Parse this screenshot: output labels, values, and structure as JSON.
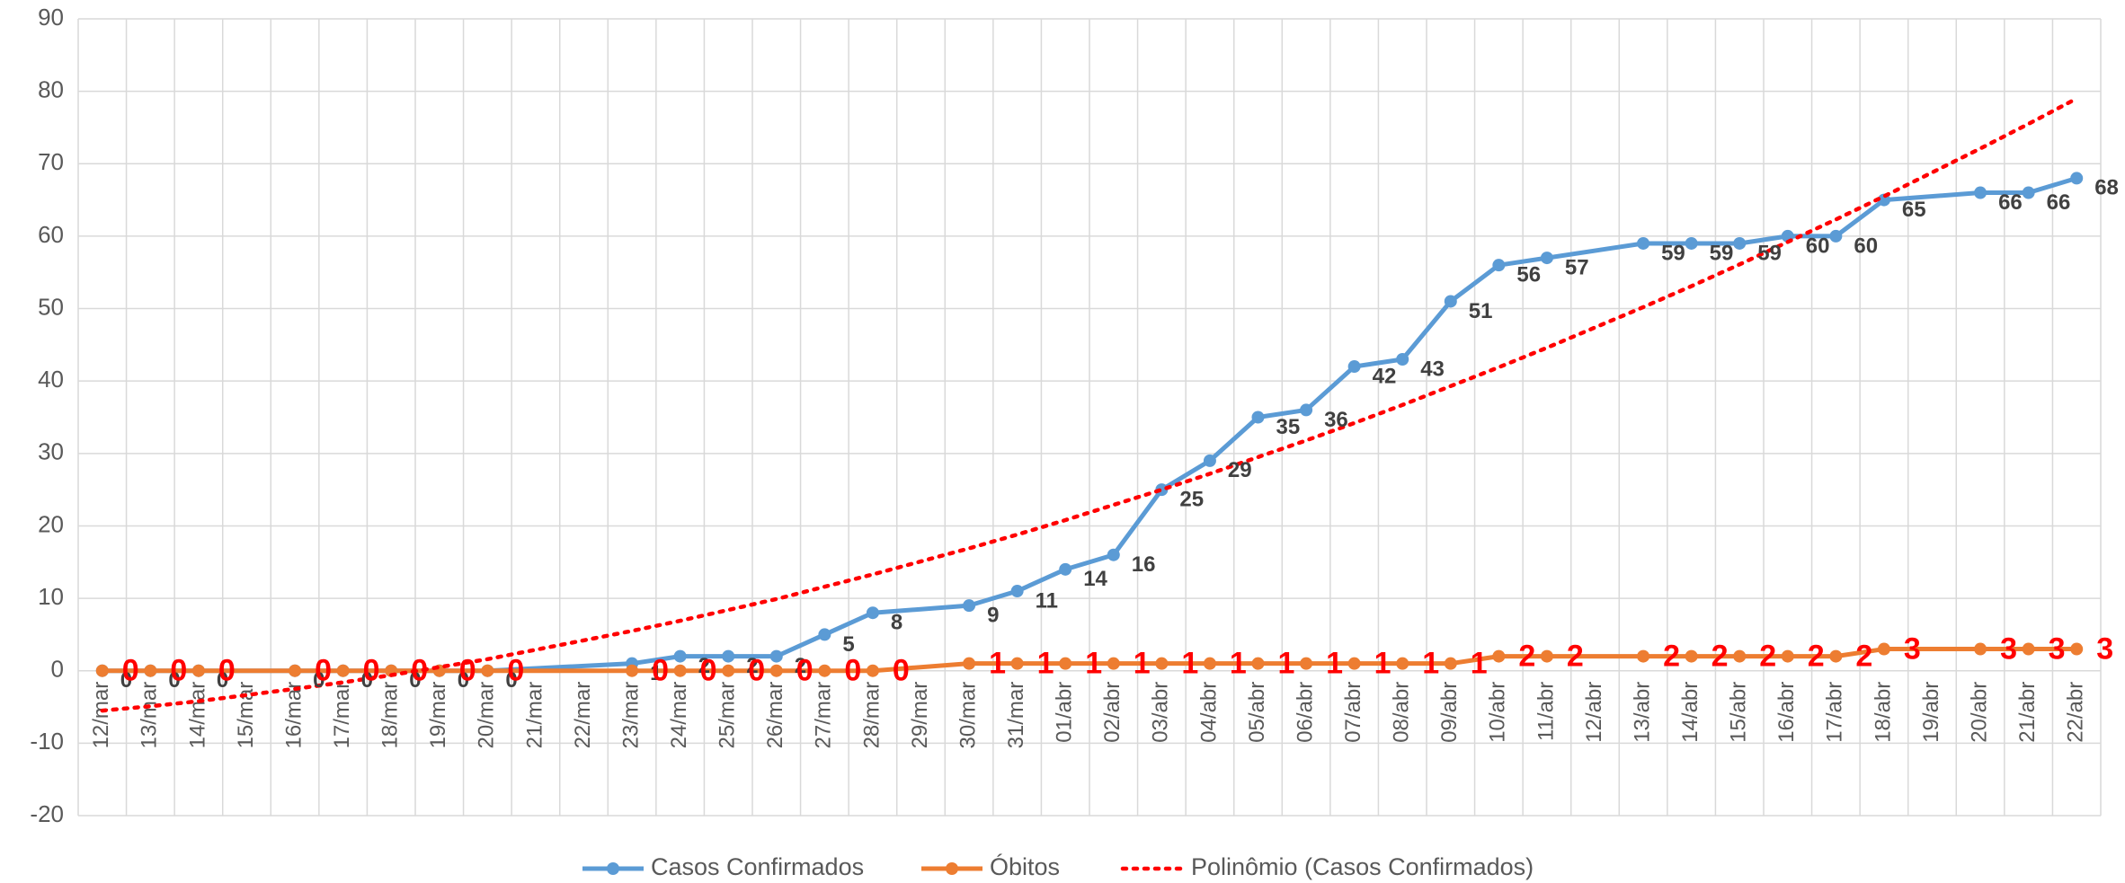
{
  "chart_data": {
    "type": "line",
    "categories": [
      "12/mar",
      "13/mar",
      "14/mar",
      "15/mar",
      "16/mar",
      "17/mar",
      "18/mar",
      "19/mar",
      "20/mar",
      "21/mar",
      "22/mar",
      "23/mar",
      "24/mar",
      "25/mar",
      "26/mar",
      "27/mar",
      "28/mar",
      "29/mar",
      "30/mar",
      "31/mar",
      "01/abr",
      "02/abr",
      "03/abr",
      "04/abr",
      "05/abr",
      "06/abr",
      "07/abr",
      "08/abr",
      "09/abr",
      "10/abr",
      "11/abr",
      "12/abr",
      "13/abr",
      "14/abr",
      "15/abr",
      "16/abr",
      "17/abr",
      "18/abr",
      "19/abr",
      "20/abr",
      "21/abr",
      "22/abr"
    ],
    "x": [
      "12/mar",
      "13/mar",
      "14/mar",
      "16/mar",
      "17/mar",
      "18/mar",
      "19/mar",
      "20/mar",
      "23/mar",
      "24/mar",
      "25/mar",
      "26/mar",
      "27/mar",
      "28/mar",
      "30/mar",
      "31/mar",
      "01/abr",
      "02/abr",
      "03/abr",
      "04/abr",
      "05/abr",
      "06/abr",
      "07/abr",
      "08/abr",
      "09/abr",
      "10/abr",
      "11/abr",
      "13/abr",
      "14/abr",
      "15/abr",
      "16/abr",
      "17/abr",
      "18/abr",
      "20/abr",
      "21/abr",
      "22/abr"
    ],
    "series": [
      {
        "name": "Casos Confirmados",
        "color": "#5b9bd5",
        "marker": true,
        "data_labels": true,
        "label_color": "#404040",
        "values": [
          0,
          0,
          0,
          0,
          0,
          0,
          0,
          0,
          1,
          2,
          2,
          2,
          5,
          8,
          9,
          11,
          14,
          16,
          25,
          29,
          35,
          36,
          42,
          43,
          51,
          56,
          57,
          59,
          59,
          59,
          60,
          60,
          65,
          66,
          66,
          68
        ]
      },
      {
        "name": "Óbitos",
        "color": "#ed7d31",
        "marker": true,
        "data_labels": true,
        "label_color": "#ff0000",
        "values": [
          0,
          0,
          0,
          0,
          0,
          0,
          0,
          0,
          0,
          0,
          0,
          0,
          0,
          0,
          1,
          1,
          1,
          1,
          1,
          1,
          1,
          1,
          1,
          1,
          1,
          2,
          2,
          2,
          2,
          2,
          2,
          2,
          3,
          3,
          3,
          3
        ]
      },
      {
        "name": "Polinômio (Casos Confirmados)",
        "color": "#ff0000",
        "marker": false,
        "data_labels": false,
        "dash": "dot",
        "values": [
          -5.5,
          -4.9,
          -4.2,
          -2.5,
          -1.6,
          -0.6,
          0.5,
          1.6,
          5.5,
          6.9,
          8.4,
          9.9,
          11.6,
          13.3,
          16.9,
          18.8,
          20.8,
          22.9,
          25.0,
          27.2,
          29.5,
          31.8,
          34.2,
          36.7,
          39.3,
          41.9,
          44.6,
          50.2,
          53.1,
          56.1,
          59.2,
          62.3,
          65.5,
          72.1,
          75.5,
          79.0
        ]
      }
    ],
    "ylim": [
      -20,
      90
    ],
    "yticks": [
      -20,
      -10,
      0,
      10,
      20,
      30,
      40,
      50,
      60,
      70,
      80,
      90
    ],
    "grid": true,
    "legend": "bottom"
  }
}
